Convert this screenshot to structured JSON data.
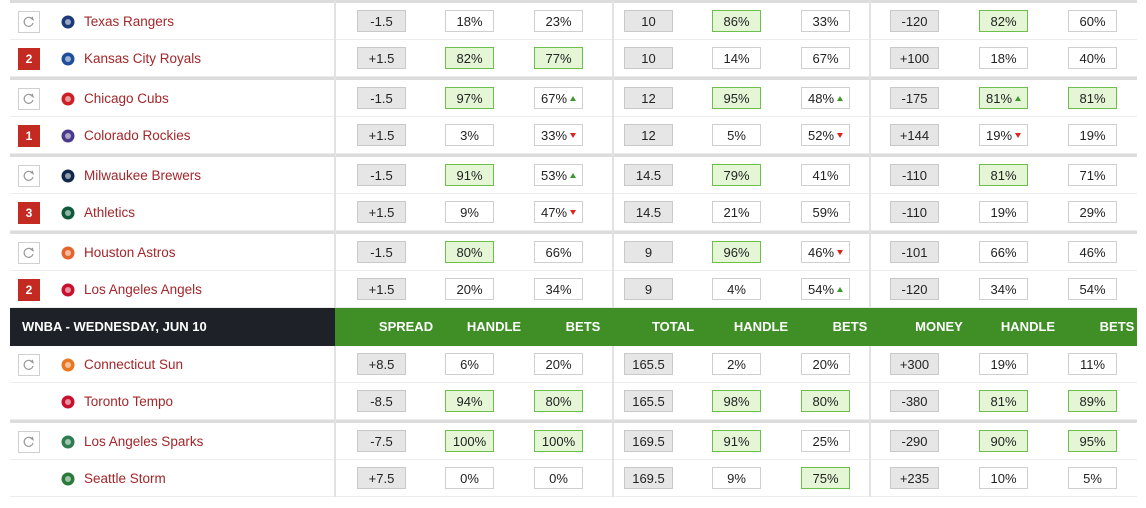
{
  "mlb_rows": [
    {
      "team": "Texas Rangers",
      "cells": [
        "-1.5",
        "18%",
        "23%",
        "10",
        "86%",
        "33%",
        "-120",
        "82%",
        "60%"
      ]
    },
    {
      "badge": "2",
      "team": "Kansas City Royals",
      "cells": [
        "+1.5",
        "82%",
        "77%",
        "10",
        "14%",
        "67%",
        "+100",
        "18%",
        "40%"
      ]
    },
    {
      "team": "Chicago Cubs",
      "cells": [
        "-1.5",
        "97%",
        "67%",
        "12",
        "95%",
        "48%",
        "-175",
        "81%",
        "81%"
      ]
    },
    {
      "badge": "1",
      "team": "Colorado Rockies",
      "cells": [
        "+1.5",
        "3%",
        "33%",
        "12",
        "5%",
        "52%",
        "+144",
        "19%",
        "19%"
      ]
    },
    {
      "team": "Milwaukee Brewers",
      "cells": [
        "-1.5",
        "91%",
        "53%",
        "14.5",
        "79%",
        "41%",
        "-110",
        "81%",
        "71%"
      ]
    },
    {
      "badge": "3",
      "team": "Athletics",
      "cells": [
        "+1.5",
        "9%",
        "47%",
        "14.5",
        "21%",
        "59%",
        "-110",
        "19%",
        "29%"
      ]
    },
    {
      "team": "Houston Astros",
      "cells": [
        "-1.5",
        "80%",
        "66%",
        "9",
        "96%",
        "46%",
        "-101",
        "66%",
        "46%"
      ]
    },
    {
      "badge": "2",
      "team": "Los Angeles Angels",
      "cells": [
        "+1.5",
        "20%",
        "34%",
        "9",
        "4%",
        "54%",
        "-120",
        "34%",
        "54%"
      ]
    }
  ],
  "wnba_header": {
    "title": "WNBA - WEDNESDAY, JUN 10",
    "columns": [
      "SPREAD",
      "HANDLE",
      "BETS",
      "TOTAL",
      "HANDLE",
      "BETS",
      "MONEY",
      "HANDLE",
      "BETS"
    ]
  },
  "wnba_rows": [
    {
      "team": "Connecticut Sun",
      "cells": [
        "+8.5",
        "6%",
        "20%",
        "165.5",
        "2%",
        "20%",
        "+300",
        "19%",
        "11%"
      ]
    },
    {
      "team": "Toronto Tempo",
      "cells": [
        "-8.5",
        "94%",
        "80%",
        "165.5",
        "98%",
        "80%",
        "-380",
        "81%",
        "89%"
      ]
    },
    {
      "team": "Los Angeles Sparks",
      "cells": [
        "-7.5",
        "100%",
        "100%",
        "169.5",
        "91%",
        "25%",
        "-290",
        "90%",
        "95%"
      ]
    },
    {
      "team": "Seattle Storm",
      "cells": [
        "+7.5",
        "0%",
        "0%",
        "169.5",
        "9%",
        "75%",
        "+235",
        "10%",
        "5%"
      ]
    }
  ]
}
